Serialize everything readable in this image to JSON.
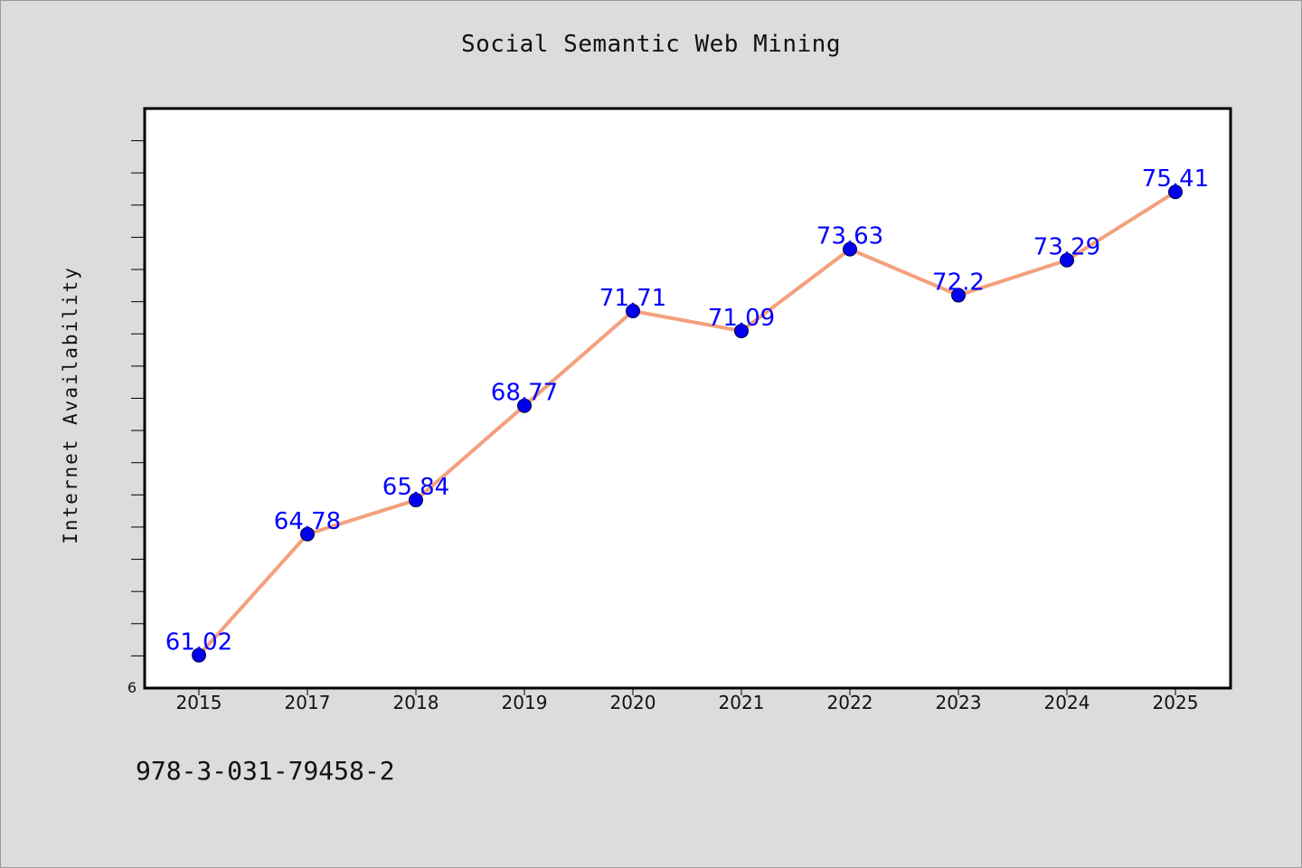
{
  "figure": {
    "title": "Social Semantic Web Mining",
    "footer_text": "978-3-031-79458-2"
  },
  "chart_data": {
    "type": "line",
    "title": "Social Semantic Web Mining",
    "xlabel": "",
    "ylabel": "Internet Availability",
    "categories": [
      "2015",
      "2017",
      "2018",
      "2019",
      "2020",
      "2021",
      "2022",
      "2023",
      "2024",
      "2025"
    ],
    "series": [
      {
        "values": [
          61.02,
          64.78,
          65.84,
          68.77,
          71.71,
          71.09,
          73.63,
          72.2,
          73.29,
          75.41
        ],
        "labels": [
          "61.02",
          "64.78",
          "65.84",
          "68.77",
          "71.71",
          "71.09",
          "73.63",
          "72.2",
          "73.29",
          "75.41"
        ]
      }
    ],
    "ylim": [
      60,
      78
    ],
    "y_tick_labels": [
      "6"
    ],
    "grid": false,
    "line_color": "#f4a07e",
    "marker_color": "#0000ee",
    "label_color": "#0000ff"
  }
}
